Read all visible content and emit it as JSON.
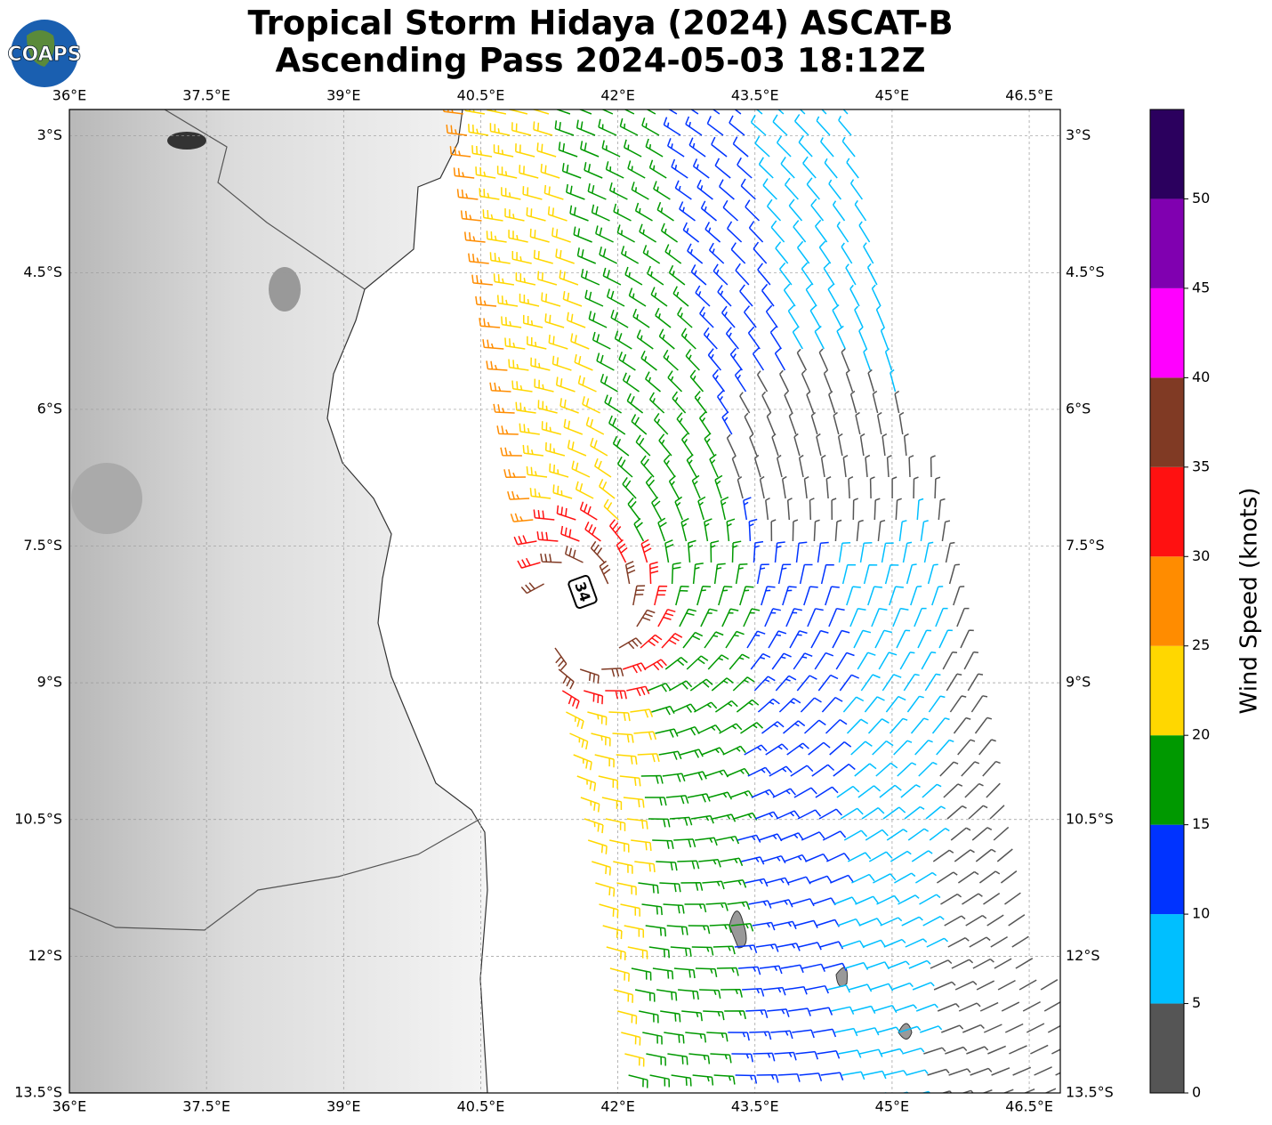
{
  "logo": "COAPS",
  "title": [
    "Tropical Storm Hidaya (2024) ASCAT-B",
    "Ascending Pass 2024-05-03 18:12Z"
  ],
  "annotation": "34",
  "map": {
    "lonlim": [
      36,
      46.84
    ],
    "latlim": [
      -2.71,
      -13.5
    ],
    "lon_ticks": [
      {
        "value": 36,
        "label": "36°E"
      },
      {
        "value": 37.5,
        "label": "37.5°E"
      },
      {
        "value": 39,
        "label": "39°E"
      },
      {
        "value": 40.5,
        "label": "40.5°E"
      },
      {
        "value": 42,
        "label": "42°E"
      },
      {
        "value": 43.5,
        "label": "43.5°E"
      },
      {
        "value": 45,
        "label": "45°E"
      },
      {
        "value": 46.5,
        "label": "46.5°E"
      }
    ],
    "lat_ticks": [
      {
        "value": -3,
        "label": "3°S"
      },
      {
        "value": -4.5,
        "label": "4.5°S"
      },
      {
        "value": -6,
        "label": "6°S"
      },
      {
        "value": -7.5,
        "label": "7.5°S"
      },
      {
        "value": -9,
        "label": "9°S"
      },
      {
        "value": -10.5,
        "label": "10.5°S"
      },
      {
        "value": -12,
        "label": "12°S"
      },
      {
        "value": -13.5,
        "label": "13.5°S"
      }
    ]
  },
  "colorbar": {
    "label": "Wind Speed (knots)",
    "bounds": [
      0,
      5,
      10,
      15,
      20,
      25,
      30,
      35,
      40,
      45,
      50,
      55
    ],
    "colors": [
      "#555555",
      "#00bfff",
      "#0033ff",
      "#009900",
      "#ffd700",
      "#ff8c00",
      "#ff1111",
      "#803a24",
      "#ff00ff",
      "#8000b0",
      "#2b005e"
    ],
    "ticks": [
      0,
      5,
      10,
      15,
      20,
      25,
      30,
      35,
      40,
      45,
      50
    ]
  }
}
